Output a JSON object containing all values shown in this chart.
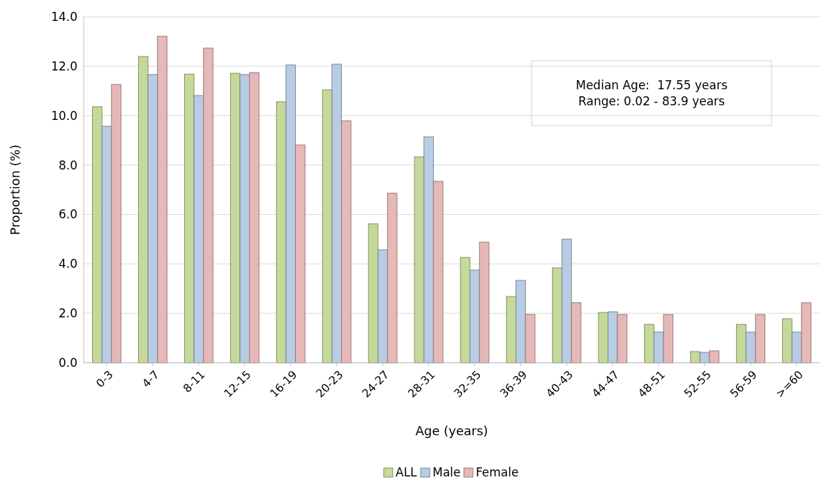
{
  "chart_data": {
    "type": "bar",
    "xlabel": "Age (years)",
    "ylabel": "Proportion (%)",
    "categories": [
      "0-3",
      "4-7",
      "8-11",
      "12-15",
      "16-19",
      "20-23",
      "24-27",
      "28-31",
      "32-35",
      "36-39",
      "40-43",
      "44-47",
      "48-51",
      "52-55",
      "56-59",
      ">=60"
    ],
    "series": [
      {
        "name": "ALL",
        "color": "#c5d99a",
        "values": [
          10.36,
          12.39,
          11.68,
          11.71,
          10.56,
          11.04,
          5.62,
          8.33,
          4.26,
          2.68,
          3.84,
          2.03,
          1.55,
          0.45,
          1.55,
          1.78
        ]
      },
      {
        "name": "Male",
        "color": "#b8cce4",
        "values": [
          9.57,
          11.66,
          10.81,
          11.66,
          12.05,
          12.08,
          4.57,
          9.14,
          3.75,
          3.33,
          5.0,
          2.06,
          1.24,
          0.42,
          1.24,
          1.24
        ]
      },
      {
        "name": "Female",
        "color": "#e6b8b7",
        "values": [
          11.26,
          13.21,
          12.73,
          11.74,
          8.81,
          9.79,
          6.86,
          7.34,
          4.88,
          1.95,
          2.43,
          1.95,
          1.95,
          0.48,
          1.95,
          2.43
        ]
      }
    ],
    "ylim": [
      0,
      14
    ],
    "yticks": [
      {
        "value": 0,
        "label": "0.0"
      },
      {
        "value": 2,
        "label": "2.0"
      },
      {
        "value": 4,
        "label": "4.0"
      },
      {
        "value": 6,
        "label": "6.0"
      },
      {
        "value": 8,
        "label": "8.0"
      },
      {
        "value": 10,
        "label": "10.0"
      },
      {
        "value": 12,
        "label": "12.0"
      },
      {
        "value": 14,
        "label": "14.0"
      }
    ],
    "grid": "y",
    "legend": "bottom",
    "annotations": [
      "Median Age:  17.55 years",
      "Range: 0.02 - 83.9 years"
    ]
  }
}
